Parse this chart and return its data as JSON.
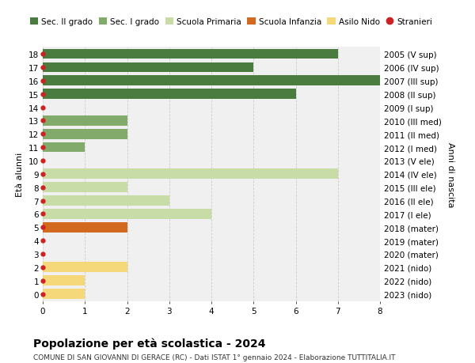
{
  "ages": [
    18,
    17,
    16,
    15,
    14,
    13,
    12,
    11,
    10,
    9,
    8,
    7,
    6,
    5,
    4,
    3,
    2,
    1,
    0
  ],
  "years": [
    "2005 (V sup)",
    "2006 (IV sup)",
    "2007 (III sup)",
    "2008 (II sup)",
    "2009 (I sup)",
    "2010 (III med)",
    "2011 (II med)",
    "2012 (I med)",
    "2013 (V ele)",
    "2014 (IV ele)",
    "2015 (III ele)",
    "2016 (II ele)",
    "2017 (I ele)",
    "2018 (mater)",
    "2019 (mater)",
    "2020 (mater)",
    "2021 (nido)",
    "2022 (nido)",
    "2023 (nido)"
  ],
  "values": [
    7,
    5,
    8,
    6,
    0,
    2,
    2,
    1,
    0,
    7,
    2,
    3,
    4,
    2,
    0,
    0,
    2,
    1,
    1
  ],
  "categories": [
    "Sec. II grado",
    "Sec. II grado",
    "Sec. II grado",
    "Sec. II grado",
    "Sec. II grado",
    "Sec. I grado",
    "Sec. I grado",
    "Sec. I grado",
    "Scuola Primaria",
    "Scuola Primaria",
    "Scuola Primaria",
    "Scuola Primaria",
    "Scuola Primaria",
    "Scuola Infanzia",
    "Scuola Infanzia",
    "Scuola Infanzia",
    "Asilo Nido",
    "Asilo Nido",
    "Asilo Nido"
  ],
  "colors": {
    "Sec. II grado": "#4a7c3f",
    "Sec. I grado": "#82aa6a",
    "Scuola Primaria": "#c8dca8",
    "Scuola Infanzia": "#d2691e",
    "Asilo Nido": "#f5d87a",
    "Stranieri": "#cc2222"
  },
  "legend_items": [
    "Sec. II grado",
    "Sec. I grado",
    "Scuola Primaria",
    "Scuola Infanzia",
    "Asilo Nido",
    "Stranieri"
  ],
  "ylabel_left": "Età alunni",
  "ylabel_right": "Anni di nascita",
  "title": "Popolazione per età scolastica - 2024",
  "subtitle": "COMUNE DI SAN GIOVANNI DI GERACE (RC) - Dati ISTAT 1° gennaio 2024 - Elaborazione TUTTITALIA.IT",
  "xlim": [
    0,
    8
  ],
  "ylim": [
    -0.55,
    18.55
  ],
  "background_color": "#ffffff",
  "bar_bg_color": "#f0f0f0",
  "grid_color": "#cccccc",
  "dot_color": "#cc2222",
  "dot_size": 3.5,
  "bar_height": 0.75,
  "title_fontsize": 10,
  "subtitle_fontsize": 6.5,
  "tick_fontsize": 7.5,
  "legend_fontsize": 7.5
}
